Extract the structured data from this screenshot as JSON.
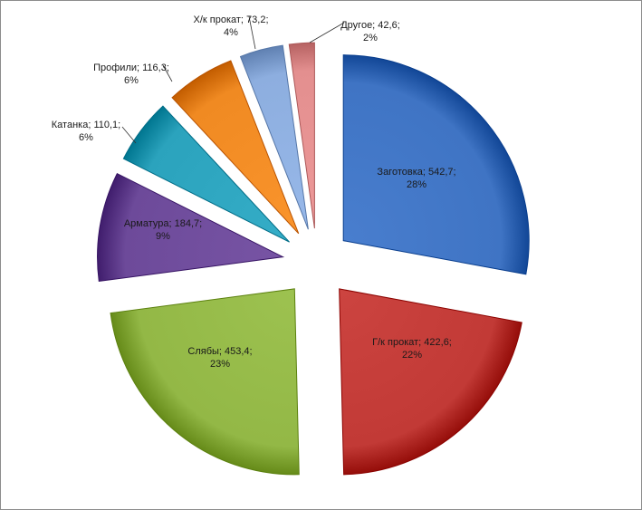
{
  "chart_data": {
    "type": "pie",
    "exploded": true,
    "style": "3d-shaded",
    "legend": "none",
    "slices": [
      {
        "category": "Заготовка",
        "value": 542.7,
        "value_label": "542,7",
        "percent_label": "28%",
        "color": "#3f74c4"
      },
      {
        "category": "Г/к прокат",
        "value": 422.6,
        "value_label": "422,6",
        "percent_label": "22%",
        "color": "#c23a36"
      },
      {
        "category": "Слябы",
        "value": 453.4,
        "value_label": "453,4",
        "percent_label": "23%",
        "color": "#93b846"
      },
      {
        "category": "Арматура",
        "value": 184.7,
        "value_label": "184,7",
        "percent_label": "9%",
        "color": "#6d4a9a"
      },
      {
        "category": "Катанка",
        "value": 110.1,
        "value_label": "110,1",
        "percent_label": "6%",
        "color": "#2ba3bd"
      },
      {
        "category": "Профили",
        "value": 116.3,
        "value_label": "116,3",
        "percent_label": "6%",
        "color": "#f08a22"
      },
      {
        "category": "Х/к прокат",
        "value": 73.2,
        "value_label": "73,2",
        "percent_label": "4%",
        "color": "#8daedf"
      },
      {
        "category": "Другое",
        "value": 42.6,
        "value_label": "42,6",
        "percent_label": "2%",
        "color": "#e38f8f"
      }
    ]
  }
}
